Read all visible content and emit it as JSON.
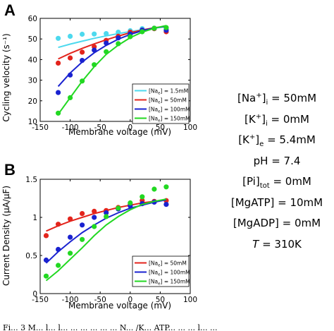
{
  "panels": [
    {
      "letter": "A",
      "xlabel": "Membrane voltage (mV)",
      "ylabel": "Cycling velocity (s⁻¹)",
      "legend_prefix": "[Na",
      "legend_sub": "e",
      "legend_suffix": "] = ",
      "legend_placement": "bottom-right"
    },
    {
      "letter": "B",
      "xlabel": "Membrane voltage (mV)",
      "ylabel": "Current Density (μA/μF)",
      "legend_prefix": "[Na",
      "legend_sub": "e",
      "legend_suffix": "] = ",
      "legend_placement": "bottom-right"
    }
  ],
  "conditions": [
    {
      "pre": "[Na",
      "sup": "+",
      "post": "]",
      "sub": "i",
      "value": " = 50mM"
    },
    {
      "pre": "[K",
      "sup": "+",
      "post": "]",
      "sub": "i",
      "value": " = 0mM"
    },
    {
      "pre": "[K",
      "sup": "+",
      "post": "]",
      "sub": "e",
      "value": " = 5.4mM"
    },
    {
      "pre": "pH",
      "sup": "",
      "post": "",
      "sub": "",
      "value": " = 7.4"
    },
    {
      "pre": "[Pi]",
      "sup": "",
      "post": "",
      "sub": "tot",
      "value": " = 0mM"
    },
    {
      "pre": "[MgATP]",
      "sup": "",
      "post": "",
      "sub": "",
      "value": " = 10mM"
    },
    {
      "pre": "[MgADP]",
      "sup": "",
      "post": "",
      "sub": "",
      "value": " = 0mM"
    },
    {
      "pre": "T",
      "sup": "",
      "post": "",
      "sub": "",
      "value": " = 310K",
      "italic": true
    }
  ],
  "footer_text": "Fi... 3  M... l... l... ... ... ... ... ... N... /K... ATP... ... ... l... ...",
  "chart_data": [
    {
      "type": "line",
      "title": "",
      "xlabel": "Membrane voltage (mV)",
      "ylabel": "Cycling velocity (s⁻¹)",
      "xlim": [
        -150,
        100
      ],
      "ylim": [
        10,
        60
      ],
      "xticks": [
        -150,
        -100,
        -50,
        0,
        50,
        100
      ],
      "yticks": [
        10,
        20,
        30,
        40,
        50,
        60
      ],
      "grid": false,
      "legend": "bottom-right",
      "series": [
        {
          "name": "1.5mM",
          "color": "#4dd9ee",
          "points": {
            "x": [
              -120,
              -100,
              -80,
              -60,
              -40,
              -20,
              0,
              20,
              40,
              60
            ],
            "y": [
              50.3,
              51.3,
              52.3,
              52.4,
              52.6,
              53.3,
              54.0,
              55.0,
              55.0,
              54.9
            ]
          },
          "fit": {
            "x": [
              -120,
              -100,
              -80,
              -60,
              -40,
              -20,
              0,
              20,
              40,
              60
            ],
            "y": [
              45.9,
              47.5,
              48.9,
              50.3,
              51.5,
              52.6,
              53.6,
              54.5,
              55.3,
              56.0
            ]
          }
        },
        {
          "name": "50mM",
          "color": "#e3241c",
          "points": {
            "x": [
              -120,
              -100,
              -80,
              -60,
              -40,
              -20,
              0,
              20,
              40,
              60
            ],
            "y": [
              38.3,
              40.8,
              43.6,
              46.2,
              49.3,
              51.3,
              53.3,
              54.3,
              55.0,
              53.5
            ]
          },
          "fit": {
            "x": [
              -120,
              -100,
              -80,
              -60,
              -40,
              -20,
              0,
              20,
              40,
              60
            ],
            "y": [
              40.3,
              43.0,
              45.4,
              47.6,
              49.6,
              51.4,
              53.0,
              54.3,
              55.4,
              56.2
            ]
          }
        },
        {
          "name": "100mM",
          "color": "#1a22d0",
          "points": {
            "x": [
              -120,
              -100,
              -80,
              -60,
              -40,
              -20,
              0,
              20,
              40,
              60
            ],
            "y": [
              24.0,
              32.5,
              39.6,
              44.6,
              48.0,
              50.5,
              52.4,
              54.3,
              55.2,
              54.2
            ]
          },
          "fit": {
            "x": [
              -120,
              -100,
              -80,
              -60,
              -40,
              -20,
              0,
              20,
              40,
              60
            ],
            "y": [
              27.0,
              33.5,
              38.8,
              43.3,
              46.9,
              49.9,
              52.2,
              54.0,
              55.3,
              56.2
            ]
          }
        },
        {
          "name": "150mM",
          "color": "#22d822",
          "points": {
            "x": [
              -120,
              -100,
              -80,
              -60,
              -40,
              -20,
              0,
              20,
              40,
              60
            ],
            "y": [
              14.0,
              21.5,
              29.6,
              37.5,
              43.8,
              47.7,
              51.1,
              53.5,
              55.2,
              55.5
            ]
          },
          "fit": {
            "x": [
              -120,
              -100,
              -80,
              -60,
              -40,
              -20,
              0,
              20,
              40,
              60
            ],
            "y": [
              13.5,
              21.5,
              29.5,
              36.5,
              42.5,
              47.0,
              50.6,
              53.3,
              55.2,
              56.5
            ]
          }
        }
      ]
    },
    {
      "type": "line",
      "title": "",
      "xlabel": "Membrane voltage (mV)",
      "ylabel": "Current Density (μA/μF)",
      "xlim": [
        -150,
        100
      ],
      "ylim": [
        0,
        1.5
      ],
      "xticks": [
        -150,
        -100,
        -50,
        0,
        50,
        100
      ],
      "yticks": [
        0,
        0.5,
        1,
        1.5
      ],
      "grid": false,
      "legend": "bottom-right",
      "series": [
        {
          "name": "50mM",
          "color": "#e3241c",
          "points": {
            "x": [
              -140,
              -120,
              -100,
              -80,
              -60,
              -40,
              -20,
              0,
              20,
              40,
              60
            ],
            "y": [
              0.76,
              0.91,
              0.98,
              1.05,
              1.08,
              1.09,
              1.13,
              1.17,
              1.22,
              1.21,
              1.22
            ]
          },
          "fit": {
            "x": [
              -140,
              -120,
              -100,
              -80,
              -60,
              -40,
              -20,
              0,
              20,
              40,
              60
            ],
            "y": [
              0.82,
              0.89,
              0.95,
              1.0,
              1.05,
              1.09,
              1.13,
              1.16,
              1.19,
              1.21,
              1.23
            ]
          }
        },
        {
          "name": "100mM",
          "color": "#1a22d0",
          "points": {
            "x": [
              -140,
              -120,
              -100,
              -80,
              -60,
              -40,
              -20,
              0,
              20,
              40,
              60
            ],
            "y": [
              0.44,
              0.58,
              0.74,
              0.9,
              1.0,
              1.06,
              1.11,
              1.15,
              1.18,
              1.2,
              1.17
            ]
          },
          "fit": {
            "x": [
              -140,
              -120,
              -100,
              -80,
              -60,
              -40,
              -20,
              0,
              20,
              40,
              60
            ],
            "y": [
              0.4,
              0.55,
              0.68,
              0.8,
              0.9,
              0.99,
              1.06,
              1.12,
              1.16,
              1.2,
              1.23
            ]
          }
        },
        {
          "name": "150mM",
          "color": "#22d822",
          "points": {
            "x": [
              -140,
              -120,
              -100,
              -80,
              -60,
              -40,
              -20,
              0,
              20,
              40,
              60
            ],
            "y": [
              0.23,
              0.37,
              0.53,
              0.71,
              0.88,
              1.01,
              1.12,
              1.19,
              1.27,
              1.37,
              1.4
            ]
          },
          "fit": {
            "x": [
              -140,
              -120,
              -100,
              -80,
              -60,
              -40,
              -20,
              0,
              20,
              40,
              60
            ],
            "y": [
              0.17,
              0.3,
              0.45,
              0.6,
              0.76,
              0.9,
              1.01,
              1.1,
              1.17,
              1.21,
              1.24
            ]
          }
        }
      ]
    }
  ]
}
